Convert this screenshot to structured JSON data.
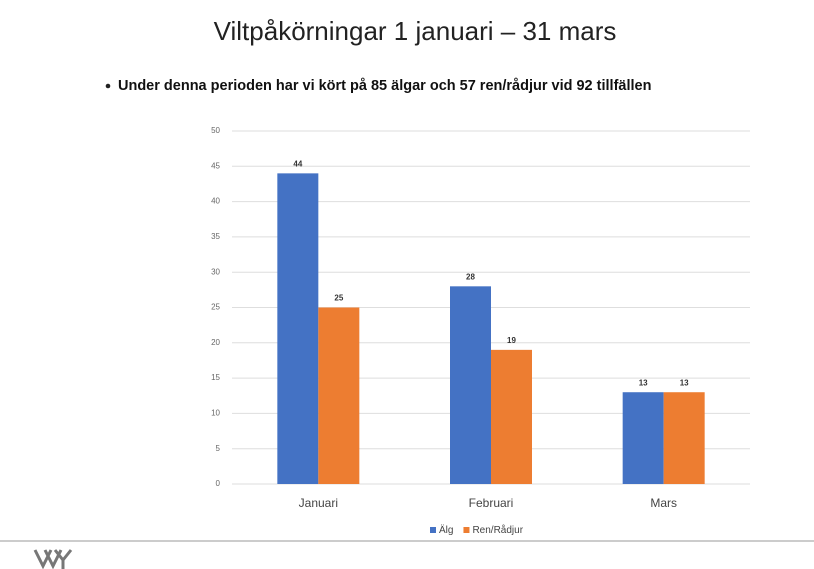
{
  "title": "Viltpåkörningar 1 januari – 31 mars",
  "subtitle": "Under denna perioden har vi kört på 85 älgar och  57 ren/rådjur vid 92 tillfällen",
  "chart_data": {
    "type": "bar",
    "categories": [
      "Januari",
      "Februari",
      "Mars"
    ],
    "series": [
      {
        "name": "Älg",
        "color": "#4472c4",
        "values": [
          44,
          28,
          13
        ]
      },
      {
        "name": "Ren/Rådjur",
        "color": "#ed7d31",
        "values": [
          25,
          19,
          13
        ]
      }
    ],
    "ylim": [
      0,
      50
    ],
    "yticks": [
      0,
      5,
      10,
      15,
      20,
      25,
      30,
      35,
      40,
      45,
      50
    ],
    "grid": true,
    "legend": "bottom"
  }
}
